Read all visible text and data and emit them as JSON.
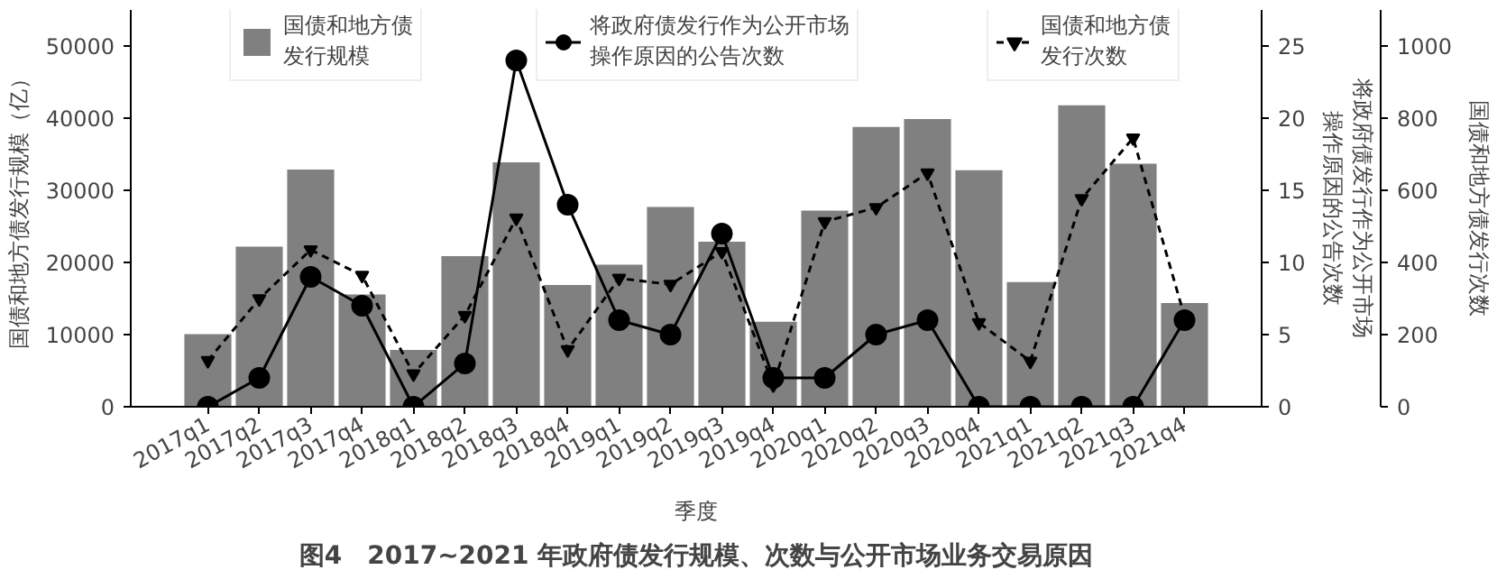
{
  "chart_data": {
    "type": "bar",
    "title": "图4　2017~2021 年政府债发行规模、次数与公开市场业务交易原因",
    "xlabel": "季度",
    "ylabel": "国债和地方债发行规模（亿）",
    "y2label": "将政府债发行作为公开市场操作原因的公告次数",
    "y3label": "国债和地方债发行次数",
    "categories": [
      "2017q1",
      "2017q2",
      "2017q3",
      "2017q4",
      "2018q1",
      "2018q2",
      "2018q3",
      "2018q4",
      "2019q1",
      "2019q2",
      "2019q3",
      "2019q4",
      "2020q1",
      "2020q2",
      "2020q3",
      "2020q4",
      "2021q1",
      "2021q2",
      "2021q3",
      "2021q4"
    ],
    "series": [
      {
        "name": "国债和地方债发行规模",
        "color": "#808080",
        "values": [
          10200,
          22300,
          33000,
          15700,
          8000,
          21000,
          34000,
          17000,
          19800,
          27800,
          23000,
          11900,
          27300,
          38900,
          40000,
          32900,
          17400,
          41900,
          33800,
          14500
        ]
      },
      {
        "name": "将政府债发行作为公开市场操作原因的公告次数",
        "type": "line",
        "axis": "y2",
        "color": "#000000",
        "marker": "circle",
        "line_style": "solid",
        "values": [
          0,
          2,
          9,
          7,
          0,
          3,
          24,
          14,
          6,
          5,
          12,
          2,
          2,
          5,
          6,
          0,
          0,
          0,
          0,
          6
        ]
      },
      {
        "name": "国债和地方债发行次数",
        "type": "line",
        "axis": "y3",
        "color": "#000000",
        "marker": "triangle",
        "line_style": "dashed",
        "values": [
          128,
          299,
          435,
          364,
          91,
          253,
          523,
          158,
          356,
          339,
          430,
          60,
          513,
          552,
          648,
          233,
          126,
          577,
          745,
          250
        ]
      }
    ],
    "ylim": [
      0,
      55000
    ],
    "yticks": [
      0,
      10000,
      20000,
      30000,
      40000,
      50000
    ],
    "y2lim": [
      0,
      27.5
    ],
    "y2ticks": [
      0,
      5,
      10,
      15,
      20,
      25
    ],
    "y3lim": [
      0,
      1100
    ],
    "y3ticks": [
      0,
      200,
      400,
      600,
      800,
      1000
    ],
    "legend": "top",
    "grid": false
  }
}
